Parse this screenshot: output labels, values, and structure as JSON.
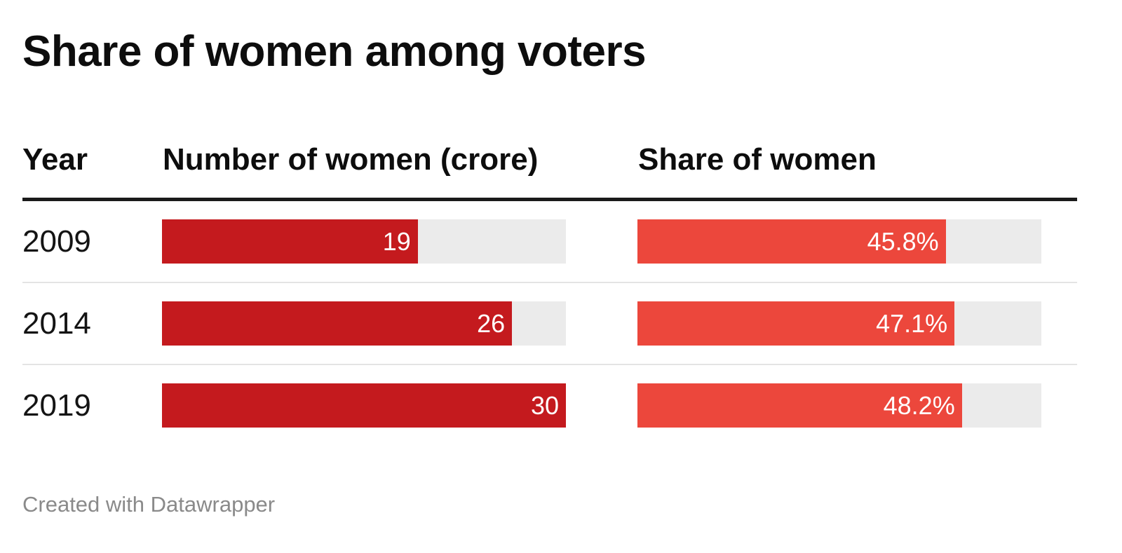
{
  "chart_data": {
    "type": "bar",
    "title": "Share of women among voters",
    "columns": {
      "year": "Year",
      "count": "Number of women (crore)",
      "share": "Share of women"
    },
    "categories": [
      "2009",
      "2014",
      "2019"
    ],
    "series": [
      {
        "name": "Number of women (crore)",
        "values": [
          19,
          26,
          30
        ],
        "labels": [
          "19",
          "26",
          "30"
        ],
        "max": 30,
        "color": "#c41a1e"
      },
      {
        "name": "Share of women",
        "values": [
          45.8,
          47.1,
          48.2
        ],
        "labels": [
          "45.8%",
          "47.1%",
          "48.2%"
        ],
        "max": 60,
        "color": "#ec473c"
      }
    ],
    "track_color": "#ebebeb",
    "footer": "Created with Datawrapper"
  }
}
